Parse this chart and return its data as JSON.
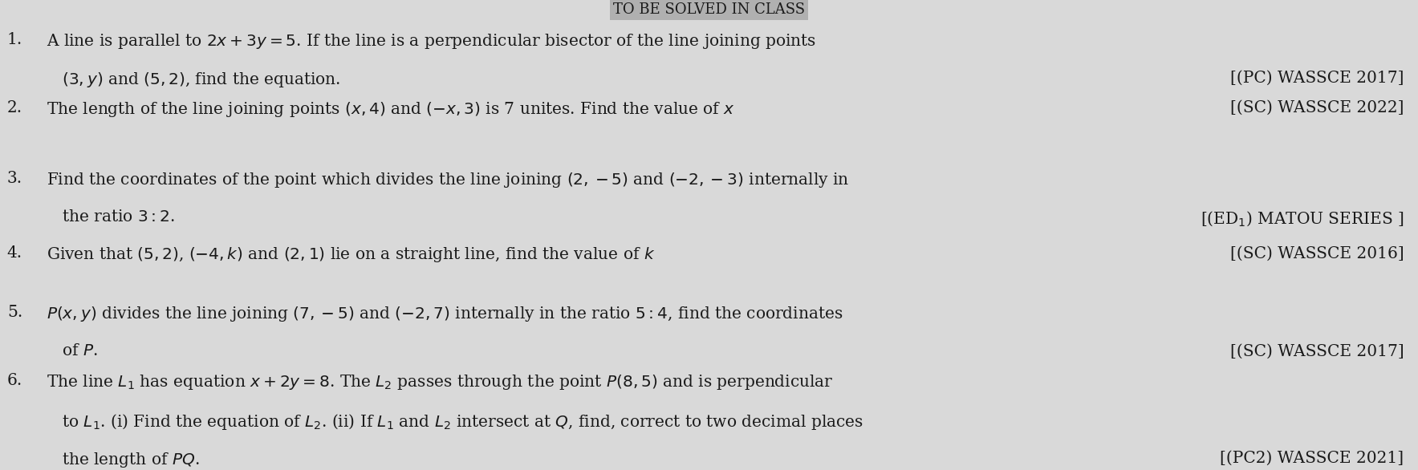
{
  "bg_color": "#d9d9d9",
  "text_color": "#1a1a1a",
  "title_partial": "TO BE SOLVED IN CLASS",
  "lines": [
    {
      "number": "1.",
      "text": "A line is parallel to $2x + 3y = 5$. If the line is a perpendicular bisector of the line joining points\n   $(3, y)$ and $(5, 2)$, find the equation.",
      "ref": "[(PC) WASSCE 2017]"
    },
    {
      "number": "2.",
      "text": "The length of the line joining points $(x, 4)$ and $(-x, 3)$ is 7 unites. Find the value of $x$",
      "ref": "[(SC) WASSCE 2022]"
    },
    {
      "number": "3.",
      "text": "Find the coordinates of the point which divides the line joining $(2, -5)$ and $(-2, -3)$ internally in\n   the ratio $3 : 2$.",
      "ref": "[(ED$_1$) MATOU SERIES ]"
    },
    {
      "number": "4.",
      "text": "Given that $(5, 2)$, $(-4, k)$ and $(2, 1)$ lie on a straight line, find the value of $k$",
      "ref": "[(SC) WASSCE 2016]"
    },
    {
      "number": "5.",
      "text": "$P(x, y)$ divides the line joining $(7, -5)$ and $(-2, 7)$ internally in the ratio $5 : 4$, find the coordinates\n   of $P$.",
      "ref": "[(SC) WASSCE 2017]"
    },
    {
      "number": "6.",
      "text": "The line $L_1$ has equation $x + 2y = 8$. The $L_2$ passes through the point $P(8, 5)$ and is perpendicular\n   to $L_1$. (i) Find the equation of $L_2$. (ii) If $L_1$ and $L_2$ intersect at $Q$, find, correct to two decimal places\n   the length of $PQ$.",
      "ref": "[(PC2) WASSCE 2021]"
    }
  ]
}
